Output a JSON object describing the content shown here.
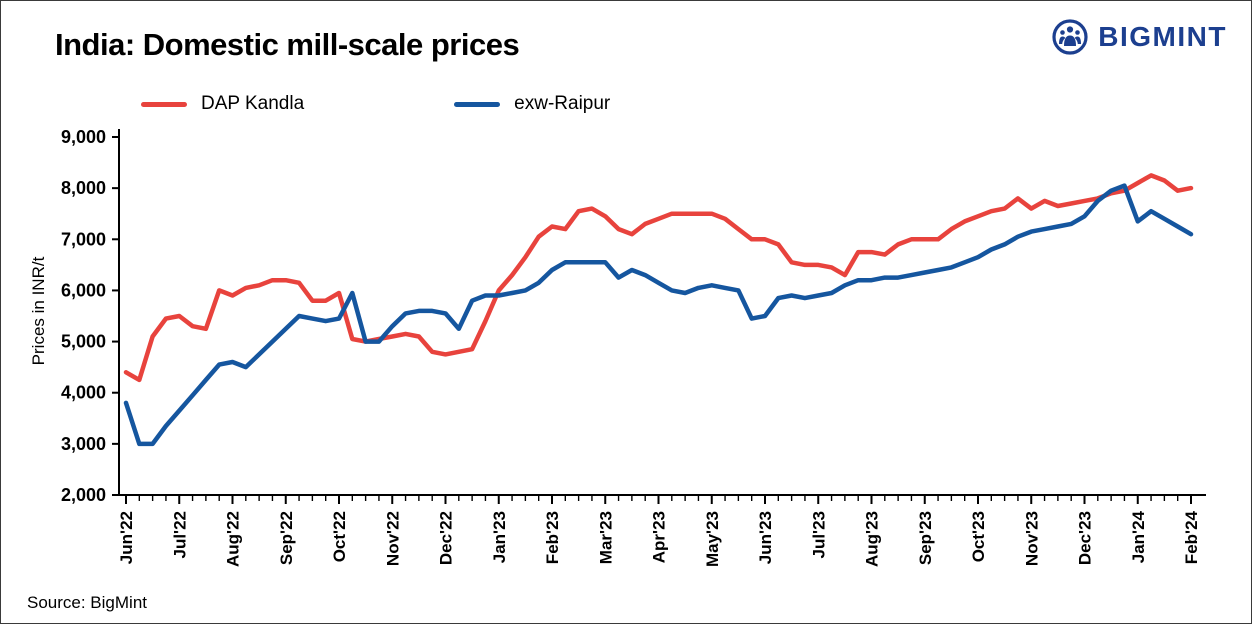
{
  "header": {
    "title": "India: Domestic mill-scale prices",
    "logo_text": "BIGMINT",
    "logo_color": "#1c3f8f"
  },
  "footer": {
    "source": "Source: BigMint"
  },
  "chart_data": {
    "type": "line",
    "title": "India: Domestic mill-scale prices",
    "xlabel": "",
    "ylabel": "Prices in INR/t",
    "ylim": [
      2000,
      9000
    ],
    "y_ticks": [
      2000,
      3000,
      4000,
      5000,
      6000,
      7000,
      8000,
      9000
    ],
    "grid": false,
    "legend_position": "top",
    "x_tick_labels": [
      "Jun'22",
      "Jul'22",
      "Aug'22",
      "Sep'22",
      "Oct'22",
      "Nov'22",
      "Dec'22",
      "Jan'23",
      "Feb'23",
      "Mar'23",
      "Apr'23",
      "May'23",
      "Jun'23",
      "Jul'23",
      "Aug'23",
      "Sep'23",
      "Oct'23",
      "Nov'23",
      "Dec'23",
      "Jan'24",
      "Feb'24"
    ],
    "points_per_month_interval": 4,
    "series": [
      {
        "name": "DAP Kandla",
        "color": "#e8433d",
        "values": [
          4400,
          4250,
          5100,
          5450,
          5500,
          5300,
          5250,
          6000,
          5900,
          6050,
          6100,
          6200,
          6200,
          6150,
          5800,
          5800,
          5950,
          5050,
          5000,
          5050,
          5100,
          5150,
          5100,
          4800,
          4750,
          4800,
          4850,
          5400,
          6000,
          6300,
          6650,
          7050,
          7250,
          7200,
          7550,
          7600,
          7450,
          7200,
          7100,
          7300,
          7400,
          7500,
          7500,
          7500,
          7500,
          7400,
          7200,
          7000,
          7000,
          6900,
          6550,
          6500,
          6500,
          6450,
          6300,
          6750,
          6750,
          6700,
          6900,
          7000,
          7000,
          7000,
          7200,
          7350,
          7450,
          7550,
          7600,
          7800,
          7600,
          7750,
          7650,
          7700,
          7750,
          7800,
          7900,
          7950,
          8100,
          8250,
          8150,
          7950,
          8000
        ]
      },
      {
        "name": "exw-Raipur",
        "color": "#15569f",
        "values": [
          3800,
          3000,
          3000,
          3350,
          3650,
          3950,
          4250,
          4550,
          4600,
          4500,
          4750,
          5000,
          5250,
          5500,
          5450,
          5400,
          5450,
          5950,
          5000,
          5000,
          5300,
          5550,
          5600,
          5600,
          5550,
          5250,
          5800,
          5900,
          5900,
          5950,
          6000,
          6150,
          6400,
          6550,
          6550,
          6550,
          6550,
          6250,
          6400,
          6300,
          6150,
          6000,
          5950,
          6050,
          6100,
          6050,
          6000,
          5450,
          5500,
          5850,
          5900,
          5850,
          5900,
          5950,
          6100,
          6200,
          6200,
          6250,
          6250,
          6300,
          6350,
          6400,
          6450,
          6550,
          6650,
          6800,
          6900,
          7050,
          7150,
          7200,
          7250,
          7300,
          7450,
          7750,
          7950,
          8050,
          7350,
          7550,
          7400,
          7250,
          7100
        ]
      }
    ]
  }
}
